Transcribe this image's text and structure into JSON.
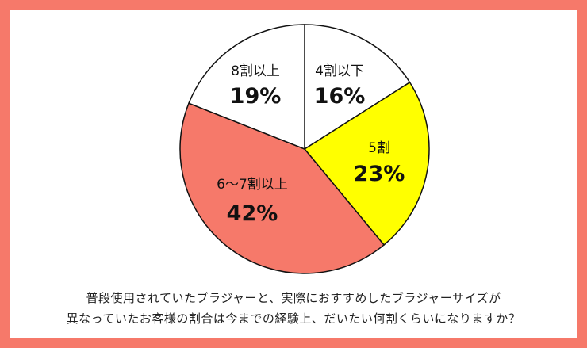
{
  "chart_data": {
    "type": "pie",
    "start_angle_deg": 0,
    "direction": "clockwise",
    "slices": [
      {
        "label": "4割以下",
        "value": 16,
        "display": "16%",
        "color": "#ffffff"
      },
      {
        "label": "5割",
        "value": 23,
        "display": "23%",
        "color": "#ffff00"
      },
      {
        "label": "6～7割以上",
        "value": 42,
        "display": "42%",
        "color": "#f6796a"
      },
      {
        "label": "8割以上",
        "value": 19,
        "display": "19%",
        "color": "#ffffff"
      }
    ]
  },
  "caption": {
    "line1": "普段使用されていたブラジャーと、実際におすすめしたブラジャーサイズが",
    "line2": "異なっていたお客様の割合は今までの経験上、だいたい何割くらいになりますか？"
  },
  "colors": {
    "frame": "#f6796a",
    "stroke": "#111111"
  }
}
